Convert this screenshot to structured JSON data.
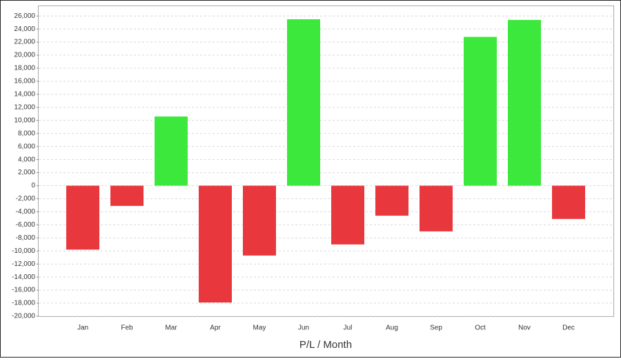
{
  "chart_data": {
    "type": "bar",
    "xlabel": "P/L / Month",
    "categories": [
      "Jan",
      "Feb",
      "Mar",
      "Apr",
      "May",
      "Jun",
      "Jul",
      "Aug",
      "Sep",
      "Oct",
      "Nov",
      "Dec"
    ],
    "values": [
      -9800,
      -3100,
      10600,
      -17900,
      -10700,
      25500,
      -9000,
      -4600,
      -7000,
      22800,
      25400,
      -5100
    ],
    "positive_color": "#3de83d",
    "negative_color": "#e8383d",
    "ylim": [
      -20000,
      27500
    ],
    "yticks": [
      {
        "value": -20000,
        "label": "-20,000"
      },
      {
        "value": -18000,
        "label": "-18,000"
      },
      {
        "value": -16000,
        "label": "-16,000"
      },
      {
        "value": -14000,
        "label": "-14,000"
      },
      {
        "value": -12000,
        "label": "-12,000"
      },
      {
        "value": -10000,
        "label": "-10,000"
      },
      {
        "value": -8000,
        "label": "-8,000"
      },
      {
        "value": -6000,
        "label": "-6,000"
      },
      {
        "value": -4000,
        "label": "-4,000"
      },
      {
        "value": -2000,
        "label": "-2,000"
      },
      0,
      {
        "value": 2000,
        "label": "2,000"
      },
      {
        "value": 4000,
        "label": "4,000"
      },
      {
        "value": 6000,
        "label": "6,000"
      },
      {
        "value": 8000,
        "label": "8,000"
      },
      {
        "value": 10000,
        "label": "10,000"
      },
      {
        "value": 12000,
        "label": "12,000"
      },
      {
        "value": 14000,
        "label": "14,000"
      },
      {
        "value": 16000,
        "label": "16,000"
      },
      {
        "value": 18000,
        "label": "18,000"
      },
      {
        "value": 20000,
        "label": "20,000"
      },
      {
        "value": 22000,
        "label": "22,000"
      },
      {
        "value": 24000,
        "label": "24,000"
      },
      {
        "value": 26000,
        "label": "26,000"
      }
    ],
    "grid": true
  }
}
